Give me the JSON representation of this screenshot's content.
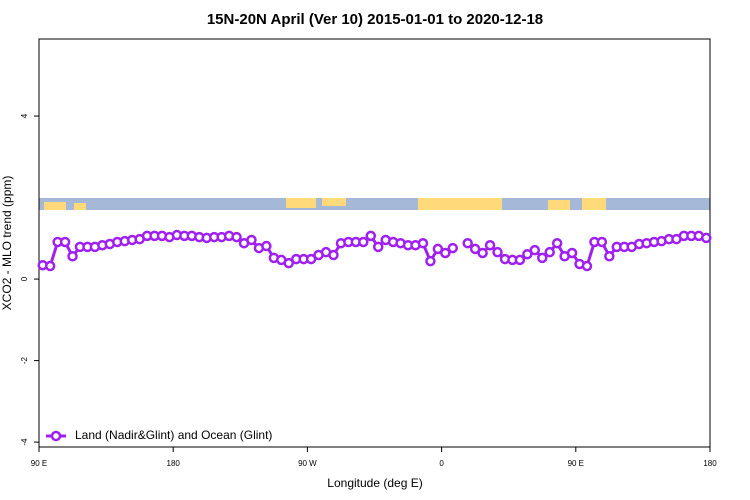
{
  "chart_data": {
    "type": "line",
    "title": "15N-20N April (Ver 10)   2015-01-01 to 2020-12-18",
    "x_label": "Longitude (deg E)",
    "y_label": "XCO2 - MLO trend (ppm)",
    "xlim": [
      90,
      540
    ],
    "ylim": [
      -4.12,
      5.89
    ],
    "xticks": [
      {
        "value": 90,
        "label": "90 E"
      },
      {
        "value": 180,
        "label": "180"
      },
      {
        "value": 270,
        "label": "90 W"
      },
      {
        "value": 360,
        "label": "0"
      },
      {
        "value": 450,
        "label": "90 E"
      },
      {
        "value": 540,
        "label": "180"
      }
    ],
    "yticks": [
      -4,
      -2,
      0,
      4
    ],
    "legend_position": "bottom-left",
    "x": [
      92.5,
      97.5,
      102.5,
      107.5,
      112.5,
      117.5,
      122.5,
      127.5,
      132.5,
      137.5,
      142.5,
      147.5,
      152.5,
      157.5,
      162.5,
      167.5,
      172.5,
      177.5,
      182.5,
      187.5,
      192.5,
      197.5,
      202.5,
      207.5,
      212.5,
      217.5,
      222.5,
      227.5,
      232.5,
      237.5,
      242.5,
      247.5,
      252.5,
      257.5,
      262.5,
      267.5,
      272.5,
      277.5,
      282.5,
      287.5,
      292.5,
      297.5,
      302.5,
      307.5,
      312.5,
      317.5,
      322.5,
      327.5,
      332.5,
      337.5,
      342.5,
      347.5,
      352.5,
      357.5,
      362.5,
      367.5,
      372.5,
      377.5,
      382.5,
      387.5,
      392.5,
      397.5,
      402.5,
      407.5,
      412.5,
      417.5,
      422.5,
      427.5,
      432.5,
      437.5,
      442.5,
      447.5,
      452.5,
      457.5,
      462.5,
      467.5,
      472.5,
      477.5,
      482.5,
      487.5,
      492.5,
      497.5,
      502.5,
      507.5,
      512.5,
      517.5,
      522.5,
      527.5,
      532.5,
      537.5
    ],
    "series": [
      {
        "name": "Land (Nadir&Glint) and Ocean (Glint)",
        "color": "#a020f0",
        "values": [
          0.34,
          0.32,
          0.91,
          0.91,
          0.56,
          0.79,
          0.79,
          0.79,
          0.83,
          0.86,
          0.91,
          0.93,
          0.96,
          0.98,
          1.06,
          1.06,
          1.06,
          1.03,
          1.08,
          1.06,
          1.06,
          1.03,
          1.01,
          1.03,
          1.03,
          1.06,
          1.03,
          0.88,
          0.96,
          0.76,
          0.81,
          0.52,
          0.47,
          0.39,
          0.49,
          0.49,
          0.49,
          0.59,
          0.66,
          0.59,
          0.88,
          0.91,
          0.91,
          0.91,
          1.06,
          0.79,
          0.96,
          0.91,
          0.88,
          0.83,
          0.83,
          0.88,
          0.44,
          0.74,
          0.64,
          0.76,
          null,
          0.88,
          0.74,
          0.64,
          0.83,
          0.66,
          0.49,
          0.47,
          0.47,
          0.61,
          0.71,
          0.52,
          0.66,
          0.88,
          0.56,
          0.64,
          0.37,
          0.32,
          0.91,
          0.91,
          0.56,
          0.79,
          0.79,
          0.79,
          0.86,
          0.88,
          0.91,
          0.93,
          0.98,
          0.98,
          1.06,
          1.06,
          1.06,
          1.01
        ]
      }
    ]
  }
}
